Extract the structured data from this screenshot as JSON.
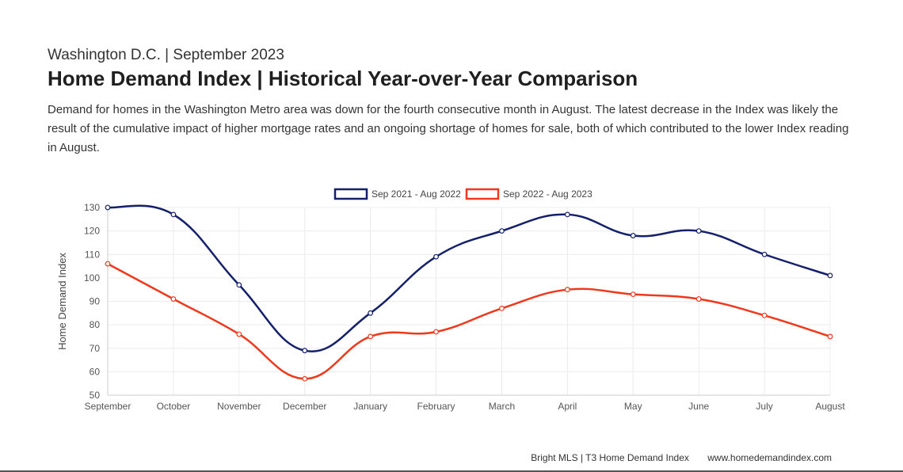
{
  "header": {
    "subtitle": "Washington D.C. | September 2023",
    "title": "Home Demand Index | Historical Year-over-Year Comparison",
    "description": "Demand for homes in the Washington Metro area was down for the fourth consecutive month in August. The latest decrease in the Index was likely the result of the cumulative impact of higher mortgage rates and an ongoing shortage of homes for sale, both of which contributed to the lower Index reading in August."
  },
  "footer": {
    "source": "Bright MLS | T3 Home Demand Index",
    "url": "www.homedemandindex.com"
  },
  "chart_data": {
    "type": "line",
    "title": "",
    "xlabel": "",
    "ylabel": "Home Demand Index",
    "categories": [
      "September",
      "October",
      "November",
      "December",
      "January",
      "February",
      "March",
      "April",
      "May",
      "June",
      "July",
      "August"
    ],
    "ylim": [
      50,
      130
    ],
    "yticks": [
      50,
      60,
      70,
      80,
      90,
      100,
      110,
      120,
      130
    ],
    "grid": true,
    "legend_position": "top",
    "series": [
      {
        "name": "Sep 2021 - Aug 2022",
        "color": "#14206b",
        "values": [
          130,
          127,
          97,
          69,
          85,
          109,
          120,
          127,
          118,
          120,
          110,
          101
        ]
      },
      {
        "name": "Sep 2022 - Aug 2023",
        "color": "#f0391c",
        "values": [
          106,
          91,
          76,
          57,
          75,
          77,
          87,
          95,
          93,
          91,
          84,
          75
        ]
      }
    ]
  }
}
